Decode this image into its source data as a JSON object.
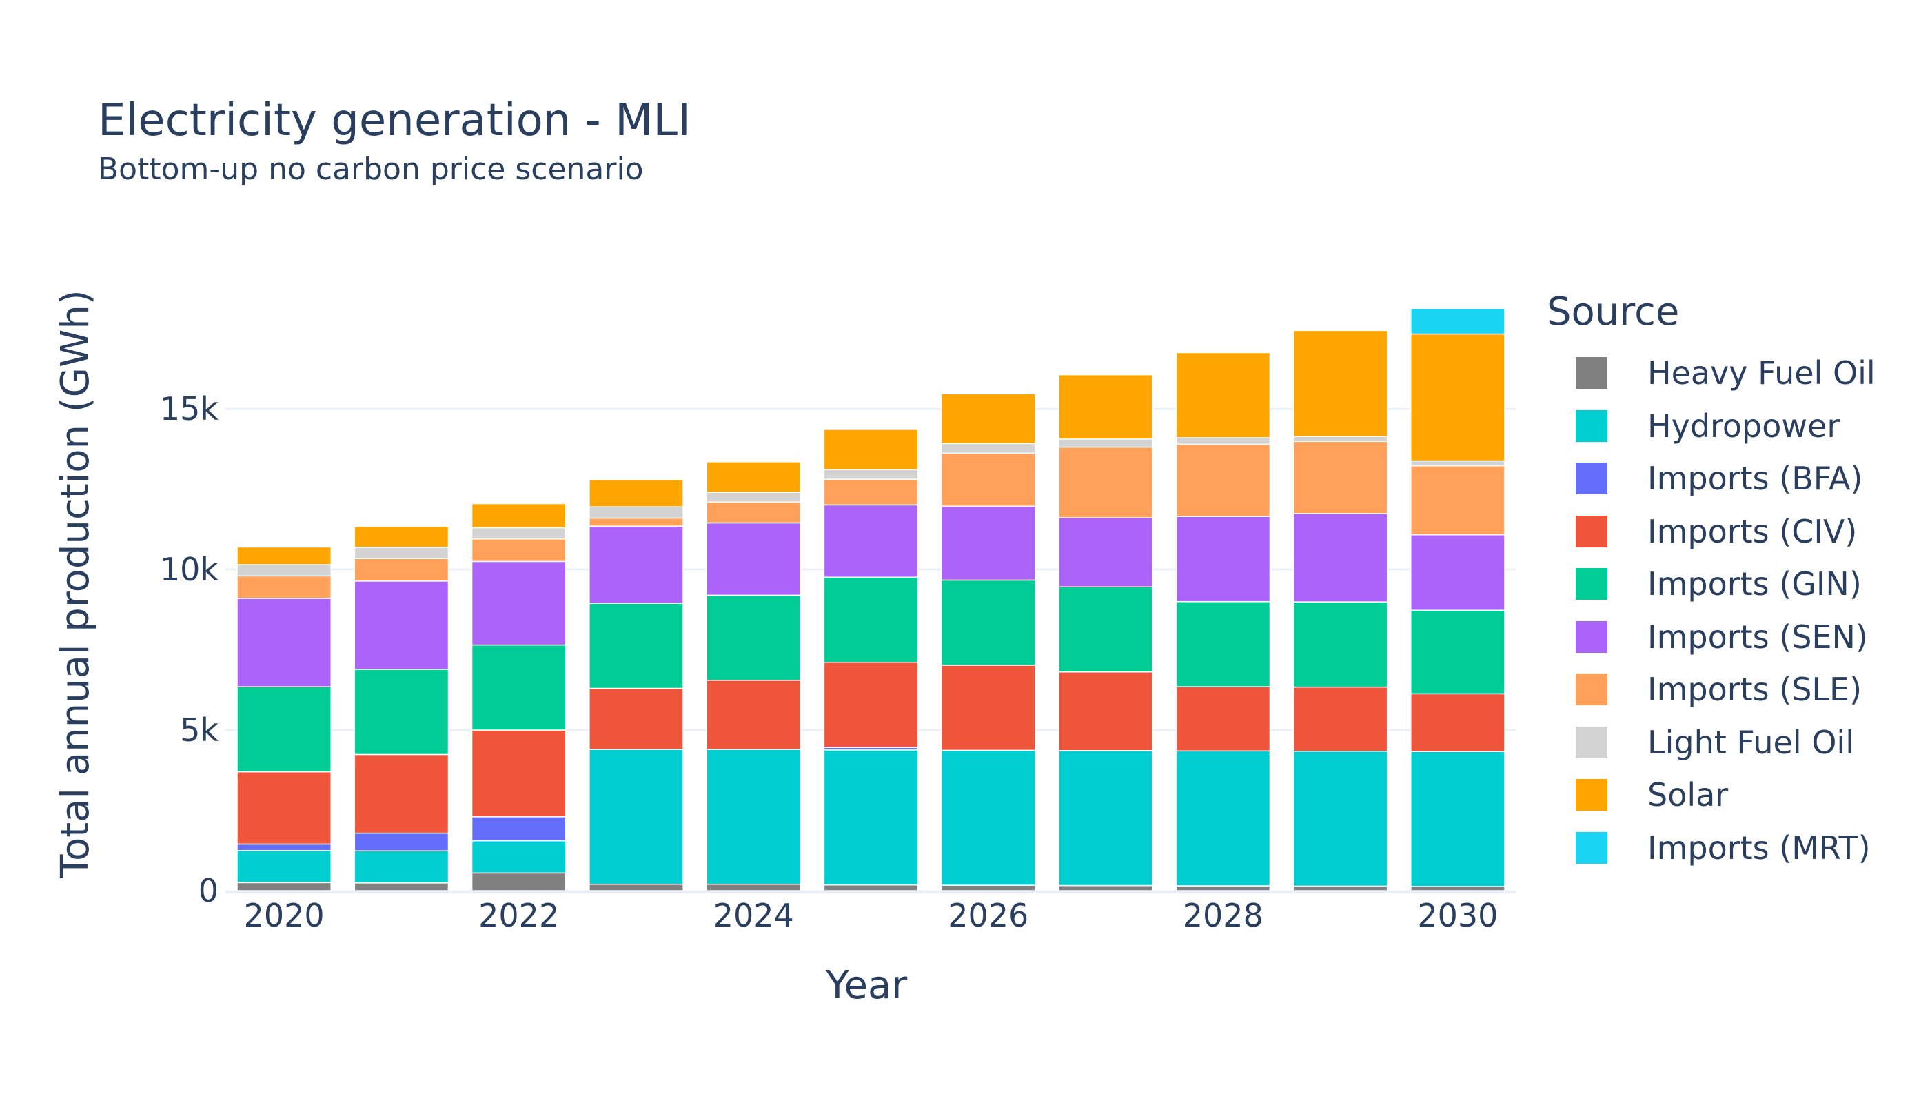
{
  "chart_data": {
    "type": "bar",
    "barmode": "stack",
    "title": "Electricity generation - MLI",
    "subtitle": "Bottom-up no carbon price scenario",
    "xlabel": "Year",
    "ylabel": "Total annual production (GWh)",
    "legend_title": "Source",
    "legend_position": "right",
    "grid": true,
    "ylim": [
      0,
      18500
    ],
    "x": [
      2020,
      2021,
      2022,
      2023,
      2024,
      2025,
      2026,
      2027,
      2028,
      2029,
      2030
    ],
    "x_ticks": [
      "2020",
      "2022",
      "2024",
      "2026",
      "2028",
      "2030"
    ],
    "y_ticks": [
      {
        "value": 0,
        "label": "0"
      },
      {
        "value": 5000,
        "label": "5k"
      },
      {
        "value": 10000,
        "label": "10k"
      },
      {
        "value": 15000,
        "label": "15k"
      }
    ],
    "series": [
      {
        "name": "Heavy Fuel Oil",
        "color": "#808080",
        "values": [
          250,
          240,
          550,
          200,
          200,
          180,
          170,
          160,
          150,
          140,
          130
        ]
      },
      {
        "name": "Hydropower",
        "color": "#00CED1",
        "values": [
          1000,
          1000,
          1000,
          4200,
          4200,
          4200,
          4200,
          4200,
          4200,
          4200,
          4200
        ]
      },
      {
        "name": "Imports (BFA)",
        "color": "#636EFA",
        "values": [
          200,
          550,
          750,
          0,
          0,
          80,
          0,
          0,
          0,
          0,
          0
        ]
      },
      {
        "name": "Imports (CIV)",
        "color": "#EF553B",
        "values": [
          2250,
          2450,
          2700,
          1900,
          2150,
          2650,
          2650,
          2450,
          2000,
          2000,
          1800
        ]
      },
      {
        "name": "Imports (GIN)",
        "color": "#00CC96",
        "values": [
          2650,
          2650,
          2650,
          2650,
          2650,
          2650,
          2650,
          2650,
          2650,
          2650,
          2600
        ]
      },
      {
        "name": "Imports (SEN)",
        "color": "#AB63FA",
        "values": [
          2750,
          2750,
          2600,
          2400,
          2250,
          2250,
          2300,
          2150,
          2650,
          2750,
          2350
        ]
      },
      {
        "name": "Imports (SLE)",
        "color": "#FFA15A",
        "values": [
          700,
          700,
          700,
          250,
          650,
          800,
          1650,
          2200,
          2250,
          2250,
          2150
        ]
      },
      {
        "name": "Light Fuel Oil",
        "color": "#D3D3D3",
        "values": [
          350,
          350,
          350,
          350,
          300,
          300,
          300,
          250,
          200,
          150,
          150
        ]
      },
      {
        "name": "Solar",
        "color": "#FFA500",
        "values": [
          550,
          650,
          750,
          850,
          950,
          1250,
          1550,
          2000,
          2650,
          3300,
          3950
        ]
      },
      {
        "name": "Imports (MRT)",
        "color": "#19D3F3",
        "values": [
          0,
          0,
          0,
          0,
          0,
          0,
          0,
          0,
          0,
          0,
          800
        ]
      }
    ]
  }
}
